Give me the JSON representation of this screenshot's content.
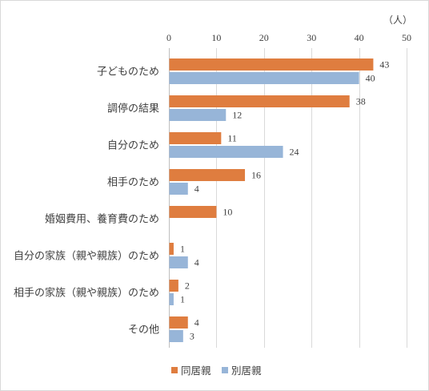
{
  "chart_data": {
    "type": "bar",
    "orientation": "horizontal",
    "unit_label": "（人）",
    "categories": [
      "子どものため",
      "調停の結果",
      "自分のため",
      "相手のため",
      "婚姻費用、養育費のため",
      "自分の家族（親や親族）のため",
      "相手の家族（親や親族）のため",
      "その他"
    ],
    "series": [
      {
        "name": "同居親",
        "color": "#DF7D3F",
        "values": [
          43,
          38,
          11,
          16,
          10,
          1,
          2,
          4
        ]
      },
      {
        "name": "別居親",
        "color": "#97B5D8",
        "values": [
          40,
          12,
          24,
          4,
          null,
          4,
          1,
          3
        ]
      }
    ],
    "xlim": [
      0,
      50
    ],
    "xticks": [
      0,
      10,
      20,
      30,
      40,
      50
    ],
    "x_axis_position": "top",
    "grid": true,
    "data_labels": true,
    "legend_position": "bottom",
    "gridline_color": "#D9D9D9",
    "axis_color": "#BFBFBF"
  }
}
